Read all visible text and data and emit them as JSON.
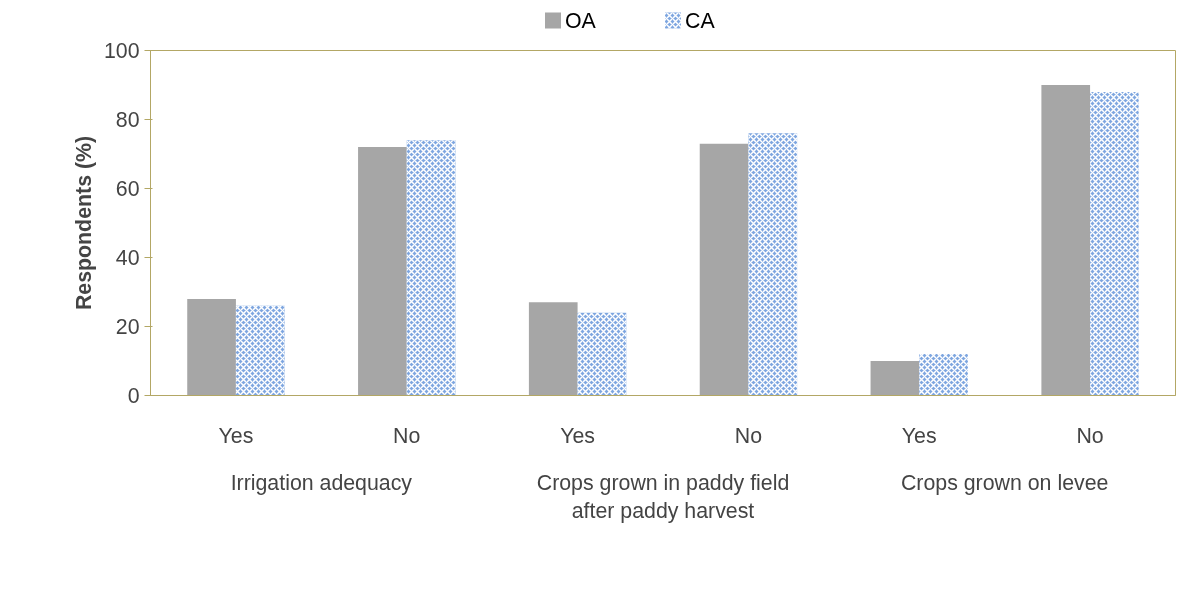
{
  "chart_data": {
    "type": "bar",
    "ylabel": "Respondents (%)",
    "categories": [
      "Yes",
      "No",
      "Yes",
      "No",
      "Yes",
      "No"
    ],
    "series": [
      {
        "name": "OA",
        "color": "#a6a6a6",
        "values": [
          28,
          72,
          27,
          73,
          10,
          90
        ]
      },
      {
        "name": "CA",
        "color": "#7ea6e0",
        "values": [
          26,
          74,
          24,
          76,
          12,
          88
        ]
      }
    ],
    "annotations": [
      "Irrigation adequacy",
      "Crops grown in paddy field\nafter paddy harvest",
      "Crops grown on levee"
    ],
    "ylim": [
      0,
      100
    ],
    "yticks": [
      0,
      20,
      40,
      60,
      80,
      100
    ],
    "grid": false,
    "legend": "top"
  }
}
